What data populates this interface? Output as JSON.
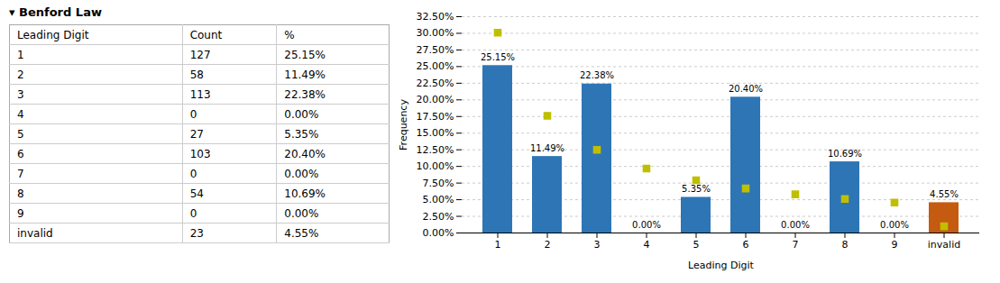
{
  "chart_data": [
    {
      "type": "table",
      "title": "▾ Benford Law",
      "xlabel": "Leading Digit",
      "categories": [
        "1",
        "2",
        "3",
        "4",
        "5",
        "6",
        "7",
        "8",
        "9",
        "invalid"
      ],
      "series": [
        {
          "name": "Count",
          "values": [
            127,
            58,
            113,
            0,
            27,
            103,
            0,
            54,
            0,
            23
          ]
        },
        {
          "name": "%",
          "values": [
            25.15,
            11.49,
            22.38,
            0.0,
            5.35,
            20.4,
            0.0,
            10.69,
            0.0,
            4.55
          ],
          "value_labels": [
            "25.15%",
            "11.49%",
            "22.38%",
            "0.00%",
            "5.35%",
            "20.40%",
            "0.00%",
            "10.69%",
            "0.00%",
            "4.55%"
          ]
        }
      ]
    },
    {
      "type": "bar",
      "xlabel": "Leading Digit",
      "ylabel": "Frequency",
      "categories": [
        "1",
        "2",
        "3",
        "4",
        "5",
        "6",
        "7",
        "8",
        "9",
        "invalid"
      ],
      "series": [
        {
          "type": "bar",
          "colors": [
            "#2E75B6",
            "#2E75B6",
            "#2E75B6",
            "#2E75B6",
            "#2E75B6",
            "#2E75B6",
            "#2E75B6",
            "#2E75B6",
            "#2E75B6",
            "#C55A11"
          ],
          "values": [
            25.15,
            11.49,
            22.38,
            0.0,
            5.35,
            20.4,
            0.0,
            10.69,
            0.0,
            4.55
          ],
          "value_labels": [
            "25.15%",
            "11.49%",
            "22.38%",
            "0.00%",
            "5.35%",
            "20.40%",
            "0.00%",
            "10.69%",
            "0.00%",
            "4.55%"
          ]
        },
        {
          "type": "scatter",
          "marker": "square",
          "color": "#BFBF00",
          "values": [
            30.1,
            17.61,
            12.49,
            9.69,
            7.92,
            6.69,
            5.8,
            5.12,
            4.58,
            1.0
          ]
        }
      ],
      "data_labels": true,
      "ylim": [
        0,
        32.5
      ],
      "yticks": [
        {
          "value": 0.0,
          "label": "0.00%"
        },
        {
          "value": 2.5,
          "label": "2.50%"
        },
        {
          "value": 5.0,
          "label": "5.00%"
        },
        {
          "value": 7.5,
          "label": "7.50%"
        },
        {
          "value": 10.0,
          "label": "10.00%"
        },
        {
          "value": 12.5,
          "label": "12.50%"
        },
        {
          "value": 15.0,
          "label": "15.00%"
        },
        {
          "value": 17.5,
          "label": "17.50%"
        },
        {
          "value": 20.0,
          "label": "20.00%"
        },
        {
          "value": 22.5,
          "label": "22.50%"
        },
        {
          "value": 25.0,
          "label": "25.00%"
        },
        {
          "value": 27.5,
          "label": "27.50%"
        },
        {
          "value": 30.0,
          "label": "30.00%"
        },
        {
          "value": 32.5,
          "label": "32.50%"
        }
      ],
      "grid": true
    }
  ]
}
